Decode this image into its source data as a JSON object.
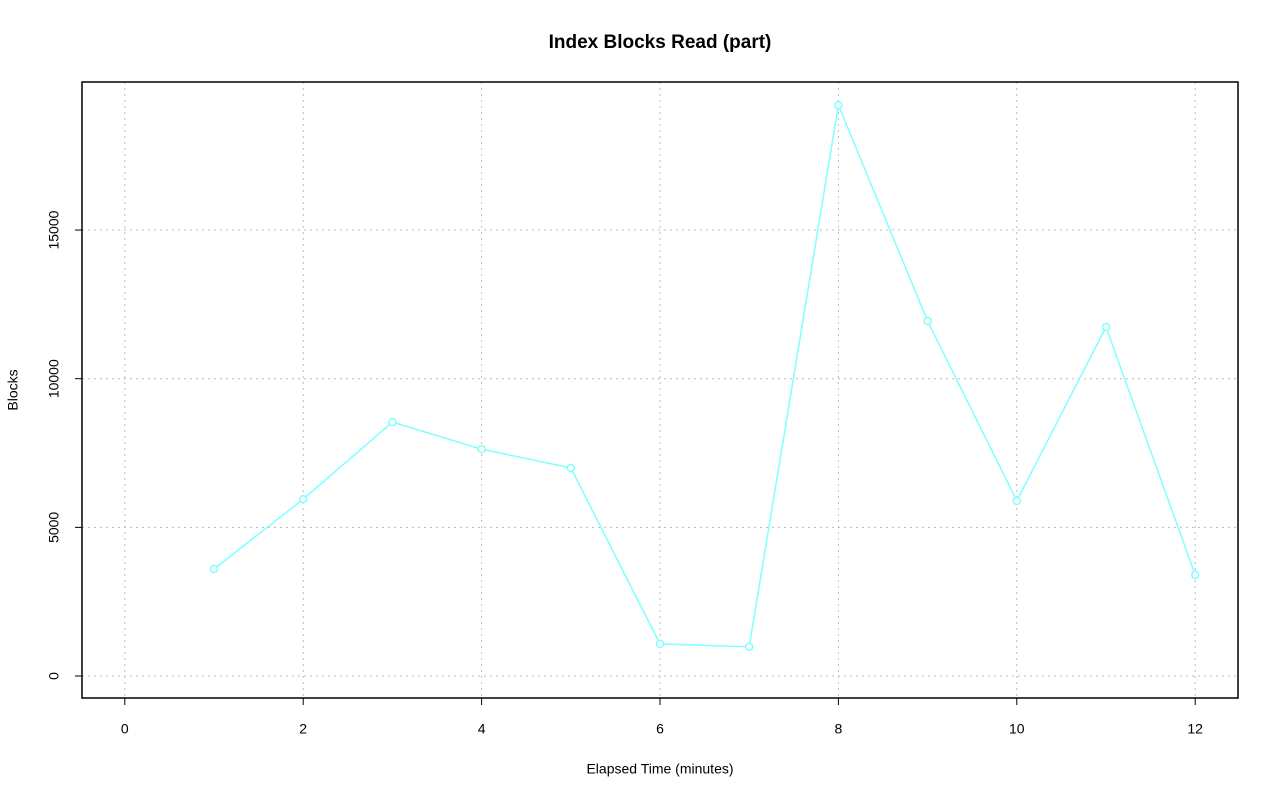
{
  "chart_data": {
    "type": "line",
    "title": "Index Blocks Read (part)",
    "x_label": "Elapsed Time (minutes)",
    "y_label": "Blocks",
    "x": [
      1,
      2,
      3,
      4,
      5,
      6,
      7,
      8,
      9,
      10,
      11,
      12
    ],
    "series": [
      {
        "name": "Index Blocks Read",
        "color": "#80ffff",
        "values": [
          3600,
          5950,
          8540,
          7630,
          7000,
          1080,
          980,
          19200,
          11940,
          5890,
          11740,
          3400
        ]
      }
    ],
    "xlim": [
      -0.48,
      12.48
    ],
    "xticks": [
      0,
      2,
      4,
      6,
      8,
      10,
      12
    ],
    "ylim": [
      -740,
      19980
    ],
    "yticks": [
      0,
      5000,
      10000,
      15000
    ],
    "grid": true
  }
}
